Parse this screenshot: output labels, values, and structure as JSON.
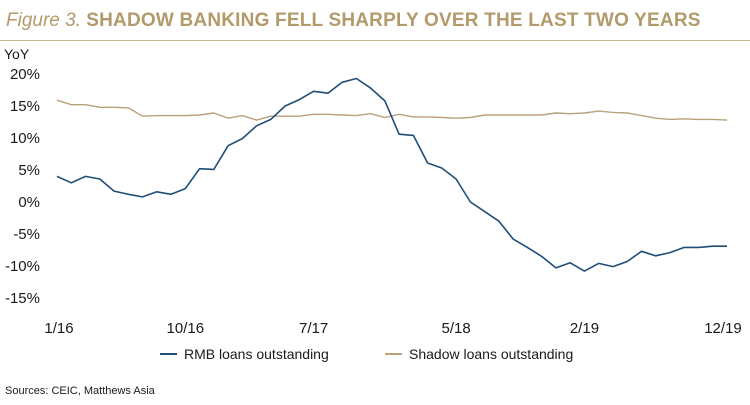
{
  "header": {
    "figure_label": "Figure 3.",
    "title": "SHADOW BANKING FELL SHARPLY OVER THE LAST TWO YEARS"
  },
  "source": "Sources: CEIC, Matthews Asia",
  "colors": {
    "title": "#b39a6b",
    "rule": "#c9b48a",
    "rmb": "#1f4e79",
    "shadow": "#b9a27a"
  },
  "chart_data": {
    "type": "line",
    "title": "SHADOW BANKING FELL SHARPLY OVER THE LAST TWO YEARS",
    "ylabel": "YoY",
    "xlabel": "",
    "ylim": [
      -15,
      20
    ],
    "yticks": [
      20,
      15,
      10,
      5,
      0,
      -5,
      -10,
      -15
    ],
    "ytick_labels": [
      "20%",
      "15%",
      "10%",
      "5%",
      "0%",
      "-5%",
      "-10%",
      "-15%"
    ],
    "x": [
      "1/16",
      "2/16",
      "3/16",
      "4/16",
      "5/16",
      "6/16",
      "7/16",
      "8/16",
      "9/16",
      "10/16",
      "11/16",
      "12/16",
      "1/17",
      "2/17",
      "3/17",
      "4/17",
      "5/17",
      "6/17",
      "7/17",
      "8/17",
      "9/17",
      "10/17",
      "11/17",
      "12/17",
      "1/18",
      "2/18",
      "3/18",
      "4/18",
      "5/18",
      "6/18",
      "7/18",
      "8/18",
      "9/18",
      "10/18",
      "11/18",
      "12/18",
      "1/19",
      "2/19",
      "3/19",
      "4/19",
      "5/19",
      "6/19",
      "7/19",
      "8/19",
      "9/19",
      "10/19",
      "11/19",
      "12/19"
    ],
    "xtick_labels": [
      "1/16",
      "10/16",
      "7/17",
      "5/18",
      "2/19",
      "12/19"
    ],
    "legend_position": "bottom",
    "grid": false,
    "series": [
      {
        "name": "RMB loans outstanding",
        "values": [
          4.0,
          3.0,
          4.0,
          3.6,
          1.7,
          1.2,
          0.8,
          1.6,
          1.2,
          2.1,
          5.2,
          5.1,
          8.8,
          9.9,
          11.9,
          12.9,
          15.0,
          16.0,
          17.3,
          17.0,
          18.7,
          19.3,
          17.8,
          15.8,
          10.6,
          10.4,
          6.1,
          5.3,
          3.6,
          0.0,
          -1.5,
          -3.0,
          -5.8,
          -7.1,
          -8.5,
          -10.3,
          -9.5,
          -10.8,
          -9.6,
          -10.1,
          -9.3,
          -7.7,
          -8.4,
          -7.9,
          -7.1,
          -7.1,
          -6.9,
          -6.9
        ]
      },
      {
        "name": "Shadow loans outstanding",
        "values": [
          15.9,
          15.2,
          15.2,
          14.8,
          14.8,
          14.7,
          13.4,
          13.5,
          13.5,
          13.5,
          13.6,
          13.9,
          13.1,
          13.5,
          12.8,
          13.4,
          13.4,
          13.4,
          13.7,
          13.7,
          13.6,
          13.5,
          13.8,
          13.2,
          13.7,
          13.3,
          13.3,
          13.2,
          13.1,
          13.2,
          13.6,
          13.6,
          13.6,
          13.6,
          13.6,
          13.9,
          13.8,
          13.9,
          14.2,
          14.0,
          13.9,
          13.5,
          13.1,
          12.9,
          13.0,
          12.9,
          12.9,
          12.8
        ]
      }
    ]
  }
}
